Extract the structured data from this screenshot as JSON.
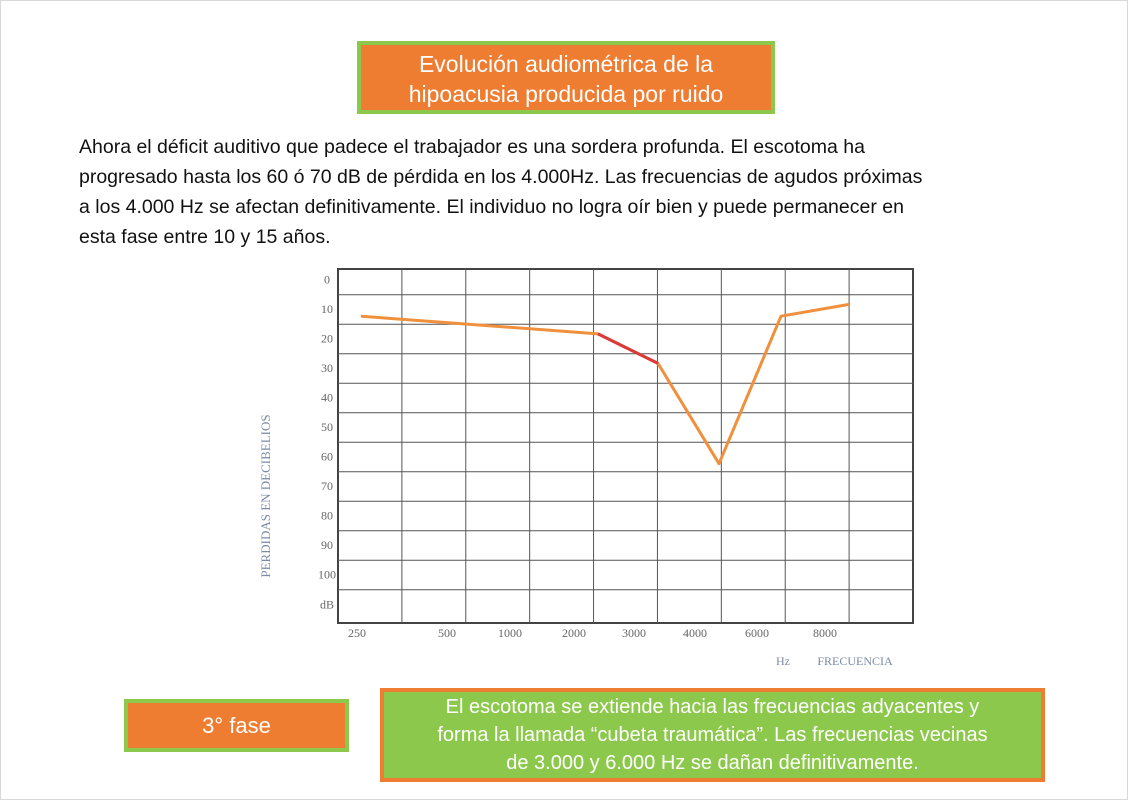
{
  "header": {
    "title_line1": "Evolución audiométrica de la",
    "title_line2": "hipoacusia producida por ruido"
  },
  "paragraph": [
    "Ahora el déficit auditivo que padece el trabajador es una sordera profunda. El escotoma ha",
    "progresado hasta los 60 ó 70 dB de pérdida en los 4.000Hz. Las frecuencias de agudos próximas",
    "a los 4.000 Hz se afectan definitivamente. El individuo no logra oír bien y puede permanecer en",
    "esta fase entre 10 y 15 años."
  ],
  "chart_data": {
    "type": "line",
    "ylabel": "PERDIDAS EN DECIBELIOS",
    "y_unit": "dB",
    "x_unit": "Hz",
    "xlabel": "FRECUENCIA",
    "ylim": [
      -4,
      116
    ],
    "yticks": [
      0,
      10,
      20,
      30,
      40,
      50,
      60,
      70,
      80,
      90,
      100
    ],
    "y_inverted": true,
    "grid": true,
    "xticks": [
      250,
      500,
      1000,
      2000,
      3000,
      4000,
      6000,
      8000
    ],
    "series": [
      {
        "color": "#f0903c",
        "x": [
          250,
          2000,
          3000,
          4000,
          6000,
          8000
        ],
        "values": [
          12,
          18,
          28,
          62,
          12,
          8
        ]
      },
      {
        "color": "#d93a3a",
        "x": [
          2000,
          3000
        ],
        "values": [
          18,
          28
        ]
      }
    ]
  },
  "phase": {
    "label": "3° fase"
  },
  "note": {
    "lines": [
      "El escotoma se extiende hacia las frecuencias adyacentes y",
      "forma la llamada “cubeta traumática”. Las frecuencias vecinas",
      "de 3.000 y 6.000 Hz se dañan definitivamente."
    ]
  }
}
